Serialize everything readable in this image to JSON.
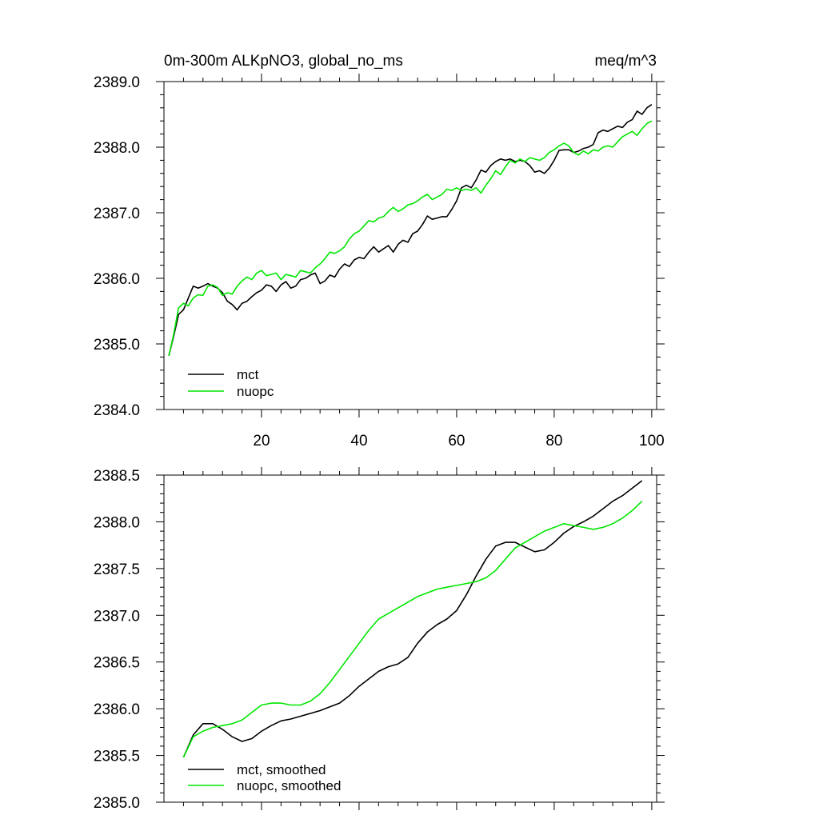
{
  "chart_data": [
    {
      "type": "line",
      "title_left": "0m-300m ALKpNO3, global_no_ms",
      "title_right": "meq/m^3",
      "xlim": [
        0,
        101
      ],
      "ylim": [
        2384.0,
        2389.0
      ],
      "xticks": [
        20,
        40,
        60,
        80,
        100
      ],
      "xtick_labels": [
        "20",
        "40",
        "60",
        "80",
        "100"
      ],
      "yticks": [
        2384.0,
        2385.0,
        2386.0,
        2387.0,
        2388.0,
        2389.0
      ],
      "ytick_labels": [
        "2384.0",
        "2385.0",
        "2386.0",
        "2387.0",
        "2388.0",
        "2389.0"
      ],
      "grid": false,
      "legend_position": "bottom-left",
      "series": [
        {
          "name": "mct",
          "color": "#000000",
          "x": [
            1,
            2,
            3,
            4,
            5,
            6,
            7,
            8,
            9,
            10,
            11,
            12,
            13,
            14,
            15,
            16,
            17,
            18,
            19,
            20,
            21,
            22,
            23,
            24,
            25,
            26,
            27,
            28,
            29,
            30,
            31,
            32,
            33,
            34,
            35,
            36,
            37,
            38,
            39,
            40,
            41,
            42,
            43,
            44,
            45,
            46,
            47,
            48,
            49,
            50,
            51,
            52,
            53,
            54,
            55,
            56,
            57,
            58,
            59,
            60,
            61,
            62,
            63,
            64,
            65,
            66,
            67,
            68,
            69,
            70,
            71,
            72,
            73,
            74,
            75,
            76,
            77,
            78,
            79,
            80,
            81,
            82,
            83,
            84,
            85,
            86,
            87,
            88,
            89,
            90,
            91,
            92,
            93,
            94,
            95,
            96,
            97,
            98,
            99,
            100
          ],
          "y": [
            2384.82,
            2385.12,
            2385.45,
            2385.52,
            2385.7,
            2385.88,
            2385.85,
            2385.88,
            2385.92,
            2385.88,
            2385.85,
            2385.78,
            2385.65,
            2385.6,
            2385.52,
            2385.62,
            2385.65,
            2385.72,
            2385.78,
            2385.82,
            2385.9,
            2385.88,
            2385.8,
            2385.9,
            2385.95,
            2385.85,
            2385.88,
            2385.98,
            2386.0,
            2386.05,
            2386.08,
            2385.92,
            2385.96,
            2386.05,
            2386.02,
            2386.14,
            2386.22,
            2386.18,
            2386.28,
            2386.32,
            2386.3,
            2386.4,
            2386.48,
            2386.4,
            2386.45,
            2386.5,
            2386.4,
            2386.52,
            2386.58,
            2386.55,
            2386.68,
            2386.72,
            2386.82,
            2386.95,
            2386.9,
            2386.92,
            2386.94,
            2386.94,
            2387.05,
            2387.18,
            2387.38,
            2387.42,
            2387.38,
            2387.5,
            2387.65,
            2387.62,
            2387.72,
            2387.78,
            2387.82,
            2387.8,
            2387.82,
            2387.78,
            2387.8,
            2387.78,
            2387.72,
            2387.62,
            2387.64,
            2387.6,
            2387.68,
            2387.8,
            2387.95,
            2387.96,
            2387.96,
            2387.92,
            2387.94,
            2387.98,
            2388.0,
            2388.04,
            2388.22,
            2388.26,
            2388.24,
            2388.28,
            2388.32,
            2388.3,
            2388.38,
            2388.42,
            2388.55,
            2388.5,
            2388.6,
            2388.65
          ]
        },
        {
          "name": "nuopc",
          "color": "#00e600",
          "x": [
            1,
            2,
            3,
            4,
            5,
            6,
            7,
            8,
            9,
            10,
            11,
            12,
            13,
            14,
            15,
            16,
            17,
            18,
            19,
            20,
            21,
            22,
            23,
            24,
            25,
            26,
            27,
            28,
            29,
            30,
            31,
            32,
            33,
            34,
            35,
            36,
            37,
            38,
            39,
            40,
            41,
            42,
            43,
            44,
            45,
            46,
            47,
            48,
            49,
            50,
            51,
            52,
            53,
            54,
            55,
            56,
            57,
            58,
            59,
            60,
            61,
            62,
            63,
            64,
            65,
            66,
            67,
            68,
            69,
            70,
            71,
            72,
            73,
            74,
            75,
            76,
            77,
            78,
            79,
            80,
            81,
            82,
            83,
            84,
            85,
            86,
            87,
            88,
            89,
            90,
            91,
            92,
            93,
            94,
            95,
            96,
            97,
            98,
            99,
            100
          ],
          "y": [
            2384.82,
            2385.15,
            2385.55,
            2385.62,
            2385.58,
            2385.7,
            2385.75,
            2385.74,
            2385.88,
            2385.9,
            2385.86,
            2385.74,
            2385.78,
            2385.76,
            2385.88,
            2385.96,
            2386.02,
            2385.98,
            2386.08,
            2386.12,
            2386.04,
            2386.06,
            2386.08,
            2385.98,
            2386.06,
            2386.04,
            2386.02,
            2386.12,
            2386.1,
            2386.08,
            2386.16,
            2386.22,
            2386.3,
            2386.4,
            2386.38,
            2386.42,
            2386.48,
            2386.6,
            2386.68,
            2386.72,
            2386.8,
            2386.88,
            2386.86,
            2386.92,
            2386.94,
            2387.02,
            2387.08,
            2387.02,
            2387.06,
            2387.12,
            2387.14,
            2387.18,
            2387.24,
            2387.28,
            2387.2,
            2387.24,
            2387.28,
            2387.36,
            2387.34,
            2387.38,
            2387.34,
            2387.36,
            2387.34,
            2387.38,
            2387.3,
            2387.42,
            2387.52,
            2387.64,
            2387.58,
            2387.7,
            2387.8,
            2387.76,
            2387.82,
            2387.78,
            2387.84,
            2387.82,
            2387.8,
            2387.84,
            2387.92,
            2387.96,
            2388.02,
            2388.06,
            2388.02,
            2387.92,
            2387.88,
            2387.94,
            2387.9,
            2387.96,
            2387.94,
            2388.0,
            2388.02,
            2388.0,
            2388.08,
            2388.16,
            2388.2,
            2388.24,
            2388.18,
            2388.28,
            2388.36,
            2388.4
          ]
        }
      ]
    },
    {
      "type": "line",
      "xlim": [
        0,
        101
      ],
      "ylim": [
        2385.0,
        2388.5
      ],
      "xticks": [
        20,
        40,
        60,
        80,
        100
      ],
      "xtick_labels": [],
      "yticks": [
        2385.0,
        2385.5,
        2386.0,
        2386.5,
        2387.0,
        2387.5,
        2388.0,
        2388.5
      ],
      "ytick_labels": [
        "2385.0",
        "2385.5",
        "2386.0",
        "2386.5",
        "2387.0",
        "2387.5",
        "2388.0",
        "2388.5"
      ],
      "grid": false,
      "legend_position": "bottom-left",
      "series": [
        {
          "name": "mct, smoothed",
          "color": "#000000",
          "x": [
            4,
            6,
            8,
            10,
            12,
            14,
            16,
            18,
            20,
            22,
            24,
            26,
            28,
            30,
            32,
            34,
            36,
            38,
            40,
            42,
            44,
            46,
            48,
            50,
            52,
            54,
            56,
            58,
            60,
            62,
            64,
            66,
            68,
            70,
            72,
            74,
            76,
            78,
            80,
            82,
            84,
            86,
            88,
            90,
            92,
            94,
            96,
            98
          ],
          "y": [
            2385.48,
            2385.72,
            2385.84,
            2385.84,
            2385.78,
            2385.7,
            2385.65,
            2385.68,
            2385.76,
            2385.82,
            2385.87,
            2385.89,
            2385.92,
            2385.95,
            2385.98,
            2386.02,
            2386.06,
            2386.14,
            2386.24,
            2386.32,
            2386.4,
            2386.45,
            2386.48,
            2386.55,
            2386.7,
            2386.82,
            2386.9,
            2386.96,
            2387.05,
            2387.22,
            2387.42,
            2387.6,
            2387.74,
            2387.78,
            2387.78,
            2387.73,
            2387.68,
            2387.7,
            2387.78,
            2387.88,
            2387.95,
            2388.0,
            2388.06,
            2388.14,
            2388.22,
            2388.28,
            2388.36,
            2388.44
          ]
        },
        {
          "name": "nuopc, smoothed",
          "color": "#00e600",
          "x": [
            4,
            6,
            8,
            10,
            12,
            14,
            16,
            18,
            20,
            22,
            24,
            26,
            28,
            30,
            32,
            34,
            36,
            38,
            40,
            42,
            44,
            46,
            48,
            50,
            52,
            54,
            56,
            58,
            60,
            62,
            64,
            66,
            68,
            70,
            72,
            74,
            76,
            78,
            80,
            82,
            84,
            86,
            88,
            90,
            92,
            94,
            96,
            98
          ],
          "y": [
            2385.48,
            2385.7,
            2385.76,
            2385.8,
            2385.82,
            2385.84,
            2385.88,
            2385.96,
            2386.04,
            2386.06,
            2386.06,
            2386.04,
            2386.04,
            2386.08,
            2386.16,
            2386.28,
            2386.42,
            2386.56,
            2386.7,
            2386.84,
            2386.96,
            2387.02,
            2387.08,
            2387.14,
            2387.2,
            2387.24,
            2387.28,
            2387.3,
            2387.32,
            2387.34,
            2387.36,
            2387.4,
            2387.48,
            2387.6,
            2387.72,
            2387.78,
            2387.84,
            2387.9,
            2387.94,
            2387.98,
            2387.96,
            2387.94,
            2387.92,
            2387.94,
            2387.98,
            2388.04,
            2388.12,
            2388.22
          ]
        }
      ]
    }
  ]
}
